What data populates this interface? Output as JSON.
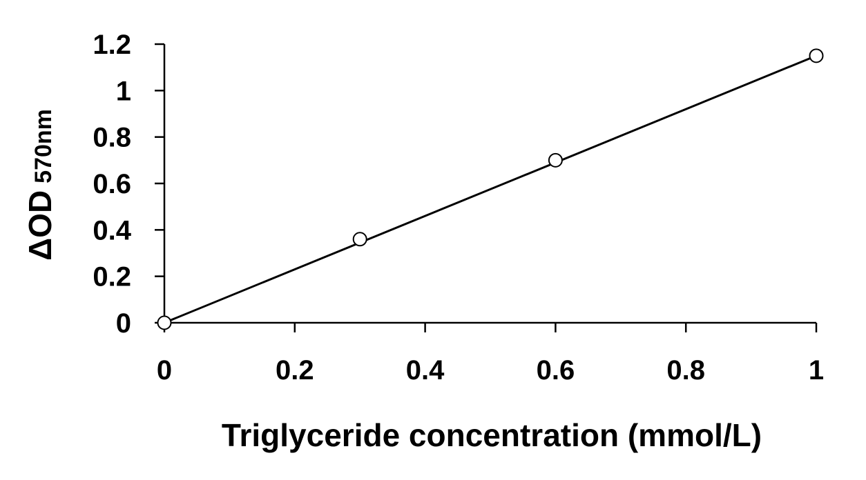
{
  "chart_data": {
    "type": "scatter",
    "xlabel": "Triglyceride concentration (mmol/L)",
    "ylabel_main": "ΔOD",
    "ylabel_sub": "570nm",
    "xlim": [
      0,
      1
    ],
    "ylim": [
      0,
      1.2
    ],
    "x_ticks": [
      "0",
      "0.2",
      "0.4",
      "0.6",
      "0.8",
      "1"
    ],
    "y_ticks": [
      "0",
      "0.2",
      "0.4",
      "0.6",
      "0.8",
      "1",
      "1.2"
    ],
    "series": [
      {
        "x": [
          0,
          0.3,
          0.6,
          1
        ],
        "y": [
          0,
          0.36,
          0.7,
          1.15
        ],
        "marker": "open-circle",
        "trendline": {
          "from": [
            0,
            0
          ],
          "to": [
            1,
            1.15
          ]
        },
        "color": "#000000"
      }
    ],
    "grid": false,
    "legend": "none"
  }
}
